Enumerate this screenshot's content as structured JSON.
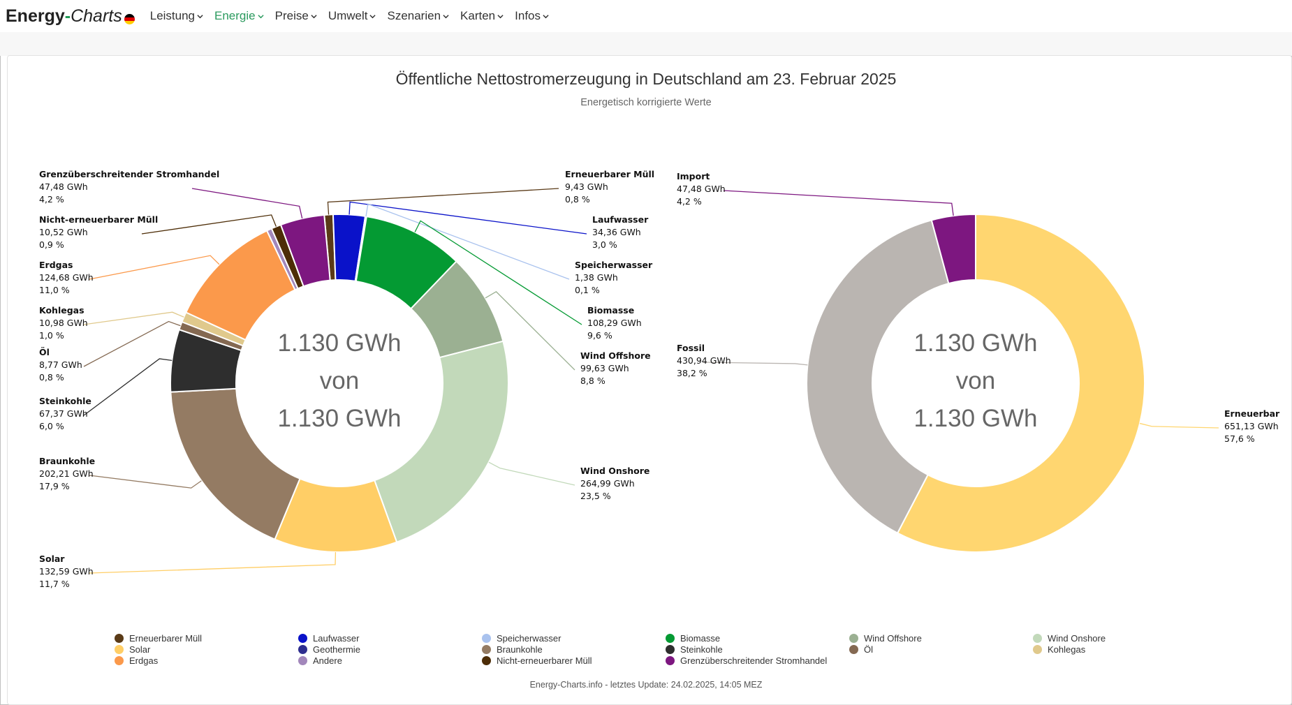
{
  "brand": {
    "part1": "Energy",
    "dash": "-",
    "part2": "Charts"
  },
  "nav": [
    {
      "label": "Leistung",
      "active": false
    },
    {
      "label": "Energie",
      "active": true
    },
    {
      "label": "Preise",
      "active": false
    },
    {
      "label": "Umwelt",
      "active": false
    },
    {
      "label": "Szenarien",
      "active": false
    },
    {
      "label": "Karten",
      "active": false
    },
    {
      "label": "Infos",
      "active": false
    }
  ],
  "footer": "Energy-Charts.info - letztes Update: 24.02.2025, 14:05 MEZ",
  "chart_data": [
    {
      "type": "pie",
      "title": "Öffentliche Nettostromerzeugung in Deutschland am 23. Februar 2025",
      "subtitle": "Energetisch korrigierte Werte",
      "center_text": [
        "1.130 GWh",
        "von",
        "1.130 GWh"
      ],
      "unit": "GWh",
      "slices": [
        {
          "name": "Erneuerbarer Müll",
          "value": 9.43,
          "value_label": "9,43 GWh",
          "percent_label": "0,8 %",
          "color": "#5a3a17"
        },
        {
          "name": "Laufwasser",
          "value": 34.36,
          "value_label": "34,36 GWh",
          "percent_label": "3,0 %",
          "color": "#0a12c9"
        },
        {
          "name": "Speicherwasser",
          "value": 1.38,
          "value_label": "1,38 GWh",
          "percent_label": "0,1 %",
          "color": "#a9c2ee"
        },
        {
          "name": "Biomasse",
          "value": 108.29,
          "value_label": "108,29 GWh",
          "percent_label": "9,6 %",
          "color": "#049a33"
        },
        {
          "name": "Wind Offshore",
          "value": 99.63,
          "value_label": "99,63 GWh",
          "percent_label": "8,8 %",
          "color": "#9bb092"
        },
        {
          "name": "Wind Onshore",
          "value": 264.99,
          "value_label": "264,99 GWh",
          "percent_label": "23,5 %",
          "color": "#c2d9ba"
        },
        {
          "name": "Solar",
          "value": 132.59,
          "value_label": "132,59 GWh",
          "percent_label": "11,7 %",
          "color": "#ffce66"
        },
        {
          "name": "Braunkohle",
          "value": 202.21,
          "value_label": "202,21 GWh",
          "percent_label": "17,9 %",
          "color": "#947b63"
        },
        {
          "name": "Steinkohle",
          "value": 67.37,
          "value_label": "67,37 GWh",
          "percent_label": "6,0 %",
          "color": "#2e2e2e"
        },
        {
          "name": "Öl",
          "value": 8.77,
          "value_label": "8,77 GWh",
          "percent_label": "0,8 %",
          "color": "#846952"
        },
        {
          "name": "Kohlegas",
          "value": 10.98,
          "value_label": "10,98 GWh",
          "percent_label": "1,0 %",
          "color": "#e0c98c"
        },
        {
          "name": "Erdgas",
          "value": 124.68,
          "value_label": "124,68 GWh",
          "percent_label": "11,0 %",
          "color": "#fb994b"
        },
        {
          "name": "Andere",
          "value": 5.5,
          "value_label": "",
          "percent_label": "",
          "color": "#a287bb"
        },
        {
          "name": "Nicht-erneuerbarer Müll",
          "value": 10.52,
          "value_label": "10,52 GWh",
          "percent_label": "0,9 %",
          "color": "#4d2d07"
        },
        {
          "name": "Grenzüberschreitender Stromhandel",
          "value": 47.48,
          "value_label": "47,48 GWh",
          "percent_label": "4,2 %",
          "color": "#7d1780"
        }
      ]
    },
    {
      "type": "pie",
      "center_text": [
        "1.130 GWh",
        "von",
        "1.130 GWh"
      ],
      "unit": "GWh",
      "slices": [
        {
          "name": "Erneuerbar",
          "value": 651.13,
          "value_label": "651,13 GWh",
          "percent_label": "57,6 %",
          "color": "#ffd670"
        },
        {
          "name": "Fossil",
          "value": 430.94,
          "value_label": "430,94 GWh",
          "percent_label": "38,2 %",
          "color": "#bab5b1"
        },
        {
          "name": "Import",
          "value": 47.48,
          "value_label": "47,48 GWh",
          "percent_label": "4,2 %",
          "color": "#7d1780"
        }
      ]
    }
  ],
  "legend": [
    {
      "name": "Erneuerbarer Müll",
      "color": "#5a3a17"
    },
    {
      "name": "Laufwasser",
      "color": "#0a12c9"
    },
    {
      "name": "Speicherwasser",
      "color": "#a9c2ee"
    },
    {
      "name": "Biomasse",
      "color": "#049a33"
    },
    {
      "name": "Wind Offshore",
      "color": "#9bb092"
    },
    {
      "name": "Wind Onshore",
      "color": "#c2d9ba"
    },
    {
      "name": "Solar",
      "color": "#ffce66"
    },
    {
      "name": "Geothermie",
      "color": "#2e2e8f"
    },
    {
      "name": "Braunkohle",
      "color": "#947b63"
    },
    {
      "name": "Steinkohle",
      "color": "#2e2e2e"
    },
    {
      "name": "Öl",
      "color": "#846952"
    },
    {
      "name": "Kohlegas",
      "color": "#e0c98c"
    },
    {
      "name": "Erdgas",
      "color": "#fb994b"
    },
    {
      "name": "Andere",
      "color": "#a287bb"
    },
    {
      "name": "Nicht-erneuerbarer Müll",
      "color": "#4d2d07"
    },
    {
      "name": "Grenzüberschreitender Stromhandel",
      "color": "#7d1780"
    }
  ]
}
